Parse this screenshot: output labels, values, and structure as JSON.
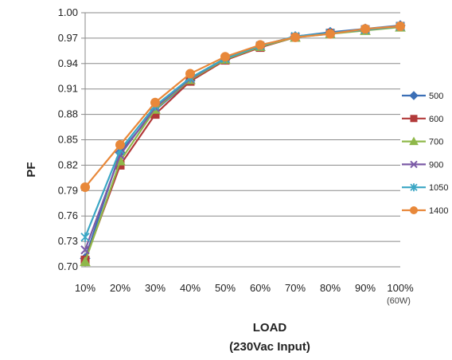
{
  "chart_data": {
    "type": "line",
    "title": "",
    "ylabel": "PF",
    "xlabel_line1": "LOAD",
    "xlabel_line2": "(230Vac Input)",
    "x_note": "(60W)",
    "categories": [
      "10%",
      "20%",
      "30%",
      "40%",
      "50%",
      "60%",
      "70%",
      "80%",
      "90%",
      "100%"
    ],
    "ylim": [
      0.7,
      1.0
    ],
    "yticks": [
      "0.70",
      "0.73",
      "0.76",
      "0.79",
      "0.82",
      "0.85",
      "0.88",
      "0.91",
      "0.94",
      "0.97",
      "1.00"
    ],
    "grid": "horizontal",
    "legend_position": "right",
    "series": [
      {
        "name": "500",
        "color": "#3b6fb6",
        "marker": "diamond",
        "values": [
          0.71,
          0.835,
          0.885,
          0.92,
          0.945,
          0.96,
          0.972,
          0.977,
          0.981,
          0.985
        ]
      },
      {
        "name": "600",
        "color": "#b23a3a",
        "marker": "square",
        "values": [
          0.708,
          0.82,
          0.88,
          0.919,
          0.944,
          0.959,
          0.971,
          0.976,
          0.98,
          0.984
        ]
      },
      {
        "name": "700",
        "color": "#8fb84a",
        "marker": "triangle",
        "values": [
          0.706,
          0.825,
          0.886,
          0.921,
          0.945,
          0.96,
          0.971,
          0.975,
          0.979,
          0.983
        ]
      },
      {
        "name": "900",
        "color": "#7b5aa6",
        "marker": "x",
        "values": [
          0.72,
          0.832,
          0.888,
          0.922,
          0.946,
          0.961,
          0.972,
          0.976,
          0.98,
          0.984
        ]
      },
      {
        "name": "1050",
        "color": "#3aa6c4",
        "marker": "asterisk",
        "values": [
          0.735,
          0.838,
          0.89,
          0.923,
          0.946,
          0.961,
          0.972,
          0.976,
          0.98,
          0.984
        ]
      },
      {
        "name": "1400",
        "color": "#e8883a",
        "marker": "circle",
        "values": [
          0.794,
          0.844,
          0.894,
          0.928,
          0.948,
          0.962,
          0.971,
          0.975,
          0.981,
          0.984
        ]
      }
    ]
  }
}
